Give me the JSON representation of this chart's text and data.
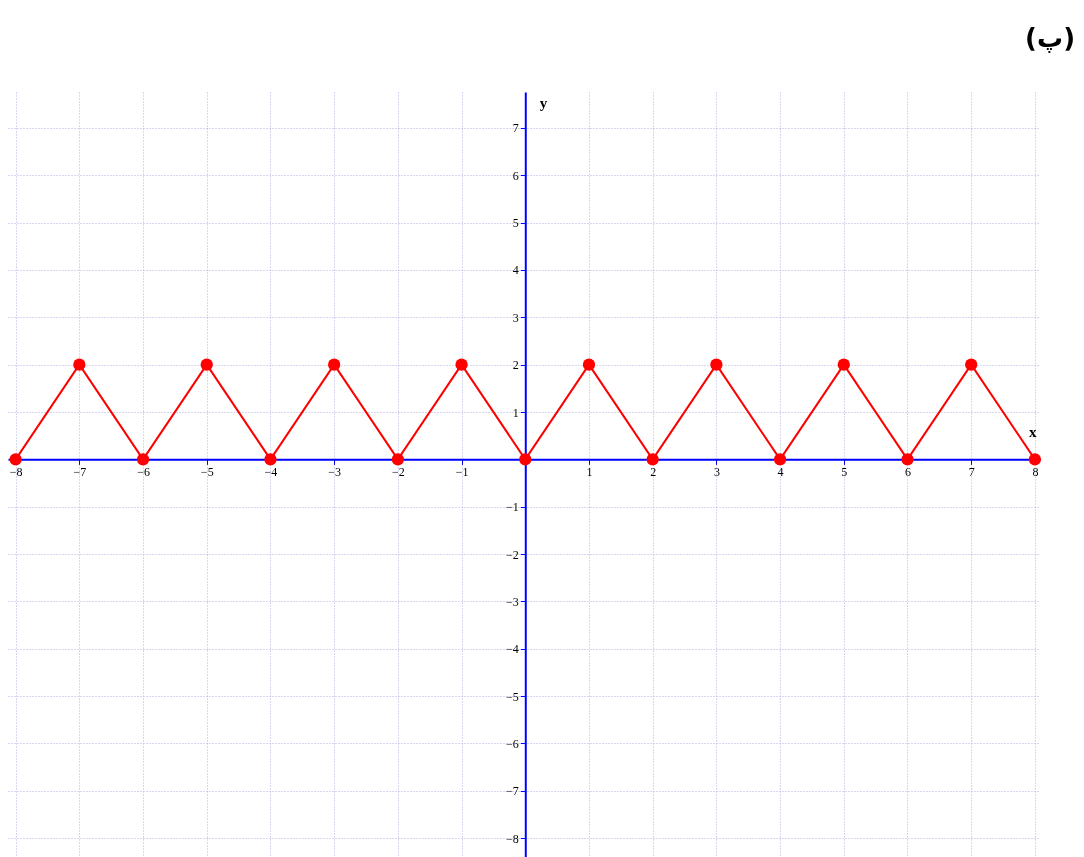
{
  "chart_data": {
    "type": "line",
    "title": "(پ)",
    "xlabel": "x",
    "ylabel": "y",
    "x": [
      -8,
      -7,
      -6,
      -5,
      -4,
      -3,
      -2,
      -1,
      0,
      1,
      2,
      3,
      4,
      5,
      6,
      7,
      8
    ],
    "series": [
      {
        "color": "#ff0000",
        "values": [
          0,
          2,
          0,
          2,
          0,
          2,
          0,
          2,
          0,
          2,
          0,
          2,
          0,
          2,
          0,
          2,
          0
        ]
      }
    ],
    "xlim": [
      -8.12,
      8.08
    ],
    "ylim": [
      -8.4,
      7.76
    ],
    "xticks": [
      -8,
      -7,
      -6,
      -5,
      -4,
      -3,
      -2,
      -1,
      1,
      2,
      3,
      4,
      5,
      6,
      7,
      8
    ],
    "yticks": [
      -8,
      -7,
      -6,
      -5,
      -4,
      -3,
      -2,
      -1,
      1,
      2,
      3,
      4,
      5,
      6,
      7
    ],
    "grid": true,
    "marker": "circle",
    "line_style": "solid",
    "legend": false
  }
}
